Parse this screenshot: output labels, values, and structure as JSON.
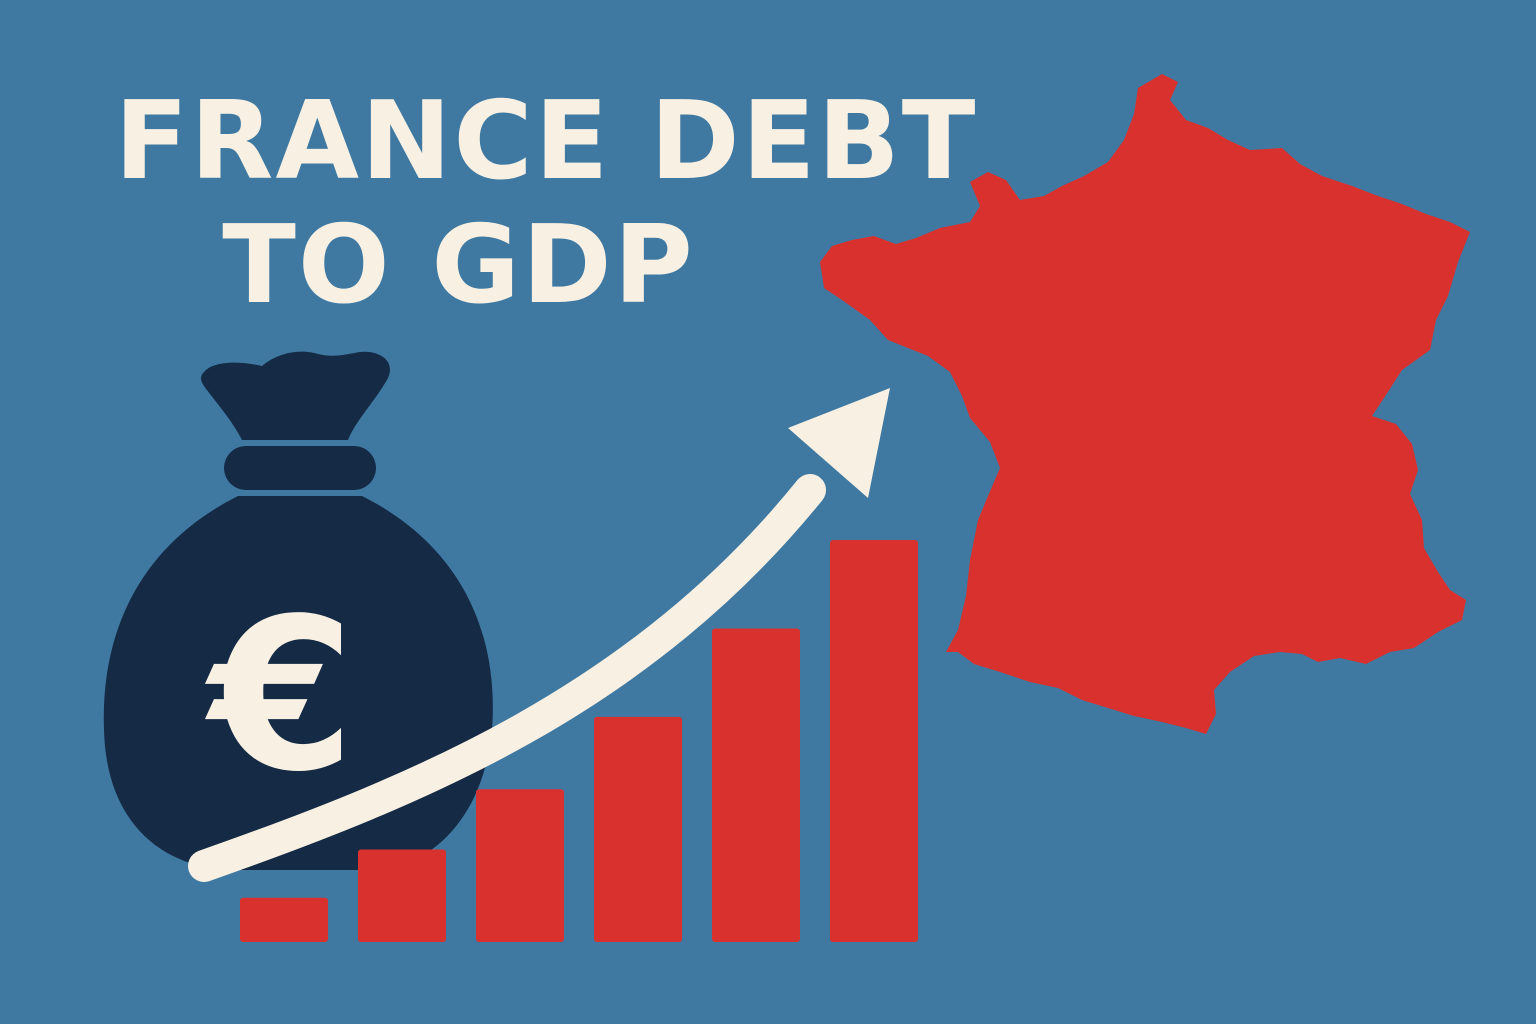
{
  "headline": {
    "line1": "FRANCE DEBT",
    "line2": "TO GDP"
  },
  "money_bag": {
    "icon": "money-bag-icon",
    "symbol": "€"
  },
  "trend": {
    "icon": "upward-trend-arrow-icon",
    "bars_relative_height": [
      0.11,
      0.23,
      0.38,
      0.56,
      0.78,
      1.0
    ]
  },
  "map": {
    "icon": "france-map-silhouette"
  },
  "colors": {
    "background": "#3f79a2",
    "text": "#f8f1e3",
    "bag": "#152a45",
    "accent_red": "#d9312e",
    "arrow": "#f8f1e3"
  }
}
